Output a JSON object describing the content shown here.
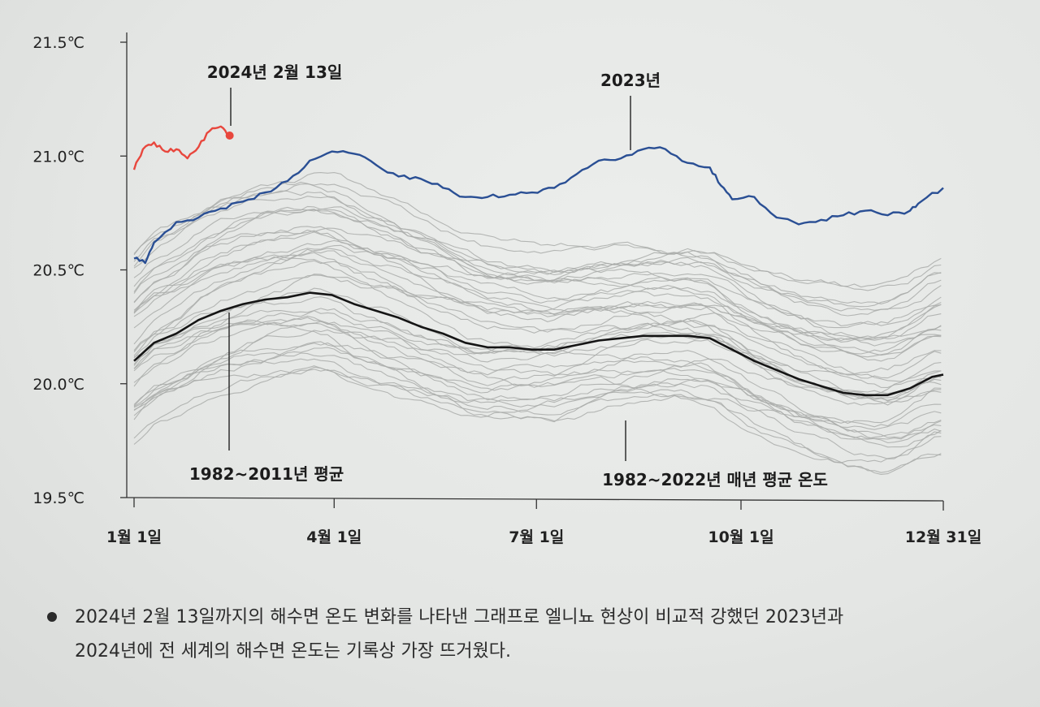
{
  "chart_data": {
    "type": "line",
    "title": "",
    "xlabel": "",
    "ylabel": "",
    "ylim": [
      19.5,
      21.5
    ],
    "y_ticks": [
      {
        "value": 21.5,
        "label": "21.5℃"
      },
      {
        "value": 21.0,
        "label": "21.0℃"
      },
      {
        "value": 20.5,
        "label": "20.5℃"
      },
      {
        "value": 20.0,
        "label": "20.0℃"
      },
      {
        "value": 19.5,
        "label": "19.5℃"
      }
    ],
    "x_ticks": [
      {
        "day": 1,
        "label": "1월 1일"
      },
      {
        "day": 91,
        "label": "4월 1일"
      },
      {
        "day": 182,
        "label": "7월 1일"
      },
      {
        "day": 274,
        "label": "10월 1일"
      },
      {
        "day": 365,
        "label": "12월 31일"
      }
    ],
    "series": [
      {
        "name": "2024년",
        "color": "#e8473d",
        "x": [
          1,
          5,
          10,
          15,
          20,
          25,
          30,
          35,
          40,
          44
        ],
        "values": [
          20.94,
          21.03,
          21.06,
          21.02,
          21.03,
          20.99,
          21.04,
          21.11,
          21.13,
          21.09
        ]
      },
      {
        "name": "2023년",
        "color": "#2a4f94",
        "x": [
          1,
          6,
          10,
          20,
          30,
          40,
          50,
          60,
          70,
          80,
          90,
          100,
          110,
          120,
          130,
          140,
          150,
          160,
          170,
          180,
          190,
          200,
          210,
          220,
          230,
          240,
          250,
          260,
          265,
          270,
          280,
          290,
          300,
          310,
          320,
          330,
          340,
          350,
          355,
          365
        ],
        "values": [
          20.55,
          20.53,
          20.62,
          20.71,
          20.73,
          20.77,
          20.8,
          20.84,
          20.89,
          20.98,
          21.02,
          21.01,
          20.96,
          20.91,
          20.9,
          20.86,
          20.82,
          20.82,
          20.83,
          20.84,
          20.86,
          20.92,
          20.98,
          20.99,
          21.03,
          21.03,
          20.97,
          20.95,
          20.87,
          20.81,
          20.82,
          20.73,
          20.7,
          20.72,
          20.74,
          20.76,
          20.74,
          20.76,
          20.8,
          20.86
        ]
      },
      {
        "name": "1982~2011년 평균",
        "color": "#151515",
        "x": [
          1,
          10,
          20,
          30,
          40,
          50,
          60,
          70,
          80,
          90,
          100,
          110,
          120,
          130,
          140,
          150,
          160,
          170,
          180,
          190,
          200,
          210,
          220,
          230,
          240,
          250,
          260,
          270,
          280,
          290,
          300,
          310,
          320,
          330,
          340,
          350,
          360,
          365
        ],
        "values": [
          20.1,
          20.18,
          20.22,
          20.28,
          20.32,
          20.35,
          20.37,
          20.38,
          20.4,
          20.39,
          20.35,
          20.32,
          20.29,
          20.25,
          20.22,
          20.18,
          20.16,
          20.16,
          20.15,
          20.15,
          20.17,
          20.19,
          20.2,
          20.21,
          20.21,
          20.21,
          20.2,
          20.15,
          20.1,
          20.06,
          20.02,
          19.99,
          19.96,
          19.95,
          19.95,
          19.98,
          20.03,
          20.04
        ]
      }
    ],
    "background_series_note": "1982~2022년 매년 평균 온도",
    "annotations": [
      {
        "text": "2024년 2월 13일",
        "target": "2024년"
      },
      {
        "text": "2023년",
        "target": "2023년"
      },
      {
        "text": "1982~2011년 평균",
        "target": "1982~2011년 평균"
      },
      {
        "text": "1982~2022년 매년 평균 온도",
        "target": "background"
      }
    ],
    "grid": false,
    "background_line_color": "#a9aca9"
  },
  "caption": {
    "line1": "2024년 2월 13일까지의 해수면 온도 변화를 나타낸 그래프로 엘니뇨 현상이 비교적 강했던 2023년과",
    "line2": "2024년에 전 세계의 해수면 온도는 기록상 가장 뜨거웠다."
  }
}
